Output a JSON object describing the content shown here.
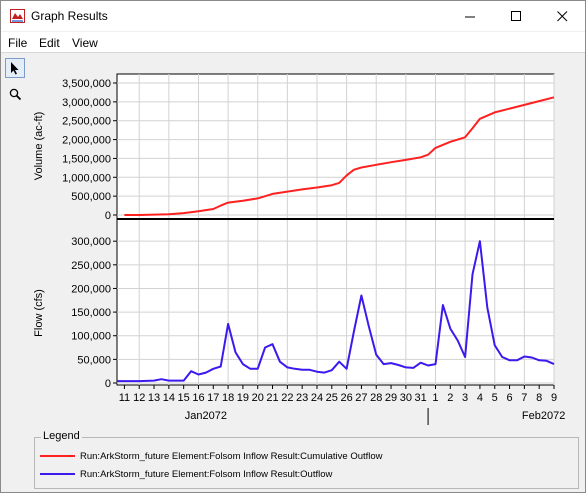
{
  "window": {
    "title": "Graph Results"
  },
  "menu": {
    "file": "File",
    "edit": "Edit",
    "view": "View"
  },
  "toolbar": {
    "select_tool": "pointer-icon",
    "zoom_tool": "magnifier-icon"
  },
  "legend": {
    "title": "Legend",
    "items": [
      {
        "label": "Run:ArkStorm_future Element:Folsom Inflow Result:Cumulative Outflow",
        "color": "#ff2020"
      },
      {
        "label": "Run:ArkStorm_future Element:Folsom Inflow Result:Outflow",
        "color": "#3a1aee"
      }
    ]
  },
  "chart_data": [
    {
      "type": "line",
      "ylabel": "Volume (ac-ft)",
      "ylim": [
        0,
        3500000
      ],
      "yticks": [
        "3,500,000",
        "3,000,000",
        "2,500,000",
        "2,000,000",
        "1,500,000",
        "1,000,000",
        "500,000",
        "0"
      ],
      "series": [
        {
          "name": "Run:ArkStorm_future Element:Folsom Inflow Result:Cumulative Outflow",
          "color": "#ff2020",
          "x": [
            11,
            12,
            13,
            14,
            15,
            16,
            17,
            17.5,
            18,
            19,
            20,
            21,
            22,
            23,
            24,
            25,
            25.5,
            26,
            26.5,
            27,
            28,
            29,
            30,
            31,
            31.5,
            32,
            33,
            34,
            34.5,
            35,
            36,
            37,
            38,
            39,
            40
          ],
          "y": [
            0,
            0,
            10000,
            20000,
            50000,
            100000,
            160000,
            250000,
            330000,
            380000,
            440000,
            560000,
            620000,
            680000,
            730000,
            790000,
            850000,
            1050000,
            1200000,
            1260000,
            1330000,
            1400000,
            1460000,
            1530000,
            1600000,
            1780000,
            1940000,
            2060000,
            2300000,
            2550000,
            2720000,
            2820000,
            2920000,
            3020000,
            3120000
          ]
        }
      ]
    },
    {
      "type": "line",
      "ylabel": "Flow (cfs)",
      "ylim": [
        0,
        330000
      ],
      "yticks": [
        "300,000",
        "250,000",
        "200,000",
        "150,000",
        "100,000",
        "50,000",
        "0"
      ],
      "xlim": [
        10.5,
        40
      ],
      "xticks": [
        "12",
        "14",
        "16",
        "18",
        "20",
        "22",
        "24",
        "26",
        "28",
        "30",
        "1",
        "3",
        "5",
        "7",
        "9"
      ],
      "xtick_values": [
        12,
        14,
        16,
        18,
        20,
        22,
        24,
        26,
        28,
        30,
        32,
        34,
        36,
        38,
        40
      ],
      "xticks_minor": [
        "11",
        "13",
        "15",
        "17",
        "19",
        "21",
        "23",
        "25",
        "27",
        "29",
        "31",
        "2",
        "4",
        "6",
        "8"
      ],
      "xtick_minor_values": [
        11,
        13,
        15,
        17,
        19,
        21,
        23,
        25,
        27,
        29,
        31,
        33,
        35,
        37,
        39
      ],
      "period_labels": [
        "Jan2072",
        "Feb2072"
      ],
      "period_label_values": [
        16.5,
        39.3
      ],
      "period_boundary": 31.5,
      "series": [
        {
          "name": "Run:ArkStorm_future Element:Folsom Inflow Result:Outflow",
          "color": "#3a1aee",
          "x": [
            10.5,
            12,
            13,
            13.5,
            14,
            15,
            15.5,
            16,
            16.5,
            17,
            17.5,
            18,
            18.5,
            19,
            19.5,
            20,
            20.5,
            21,
            21.5,
            22,
            22.5,
            23,
            23.5,
            24,
            24.5,
            25,
            25.5,
            26,
            26.5,
            27,
            27.5,
            28,
            28.5,
            29,
            29.5,
            30,
            30.5,
            31,
            31.5,
            32,
            32.5,
            33,
            33.5,
            34,
            34.5,
            35,
            35.5,
            36,
            36.5,
            37,
            37.5,
            38,
            38.5,
            39,
            39.5,
            40
          ],
          "y": [
            4000,
            4000,
            5000,
            8000,
            5000,
            5000,
            25000,
            18000,
            22000,
            30000,
            35000,
            125000,
            65000,
            40000,
            30000,
            30000,
            75000,
            82000,
            45000,
            33000,
            30000,
            28000,
            28000,
            24000,
            22000,
            27000,
            45000,
            30000,
            110000,
            185000,
            120000,
            60000,
            40000,
            42000,
            38000,
            33000,
            32000,
            43000,
            37000,
            40000,
            165000,
            115000,
            90000,
            55000,
            230000,
            300000,
            160000,
            80000,
            55000,
            48000,
            48000,
            56000,
            54000,
            48000,
            47000,
            40000
          ]
        }
      ]
    }
  ]
}
